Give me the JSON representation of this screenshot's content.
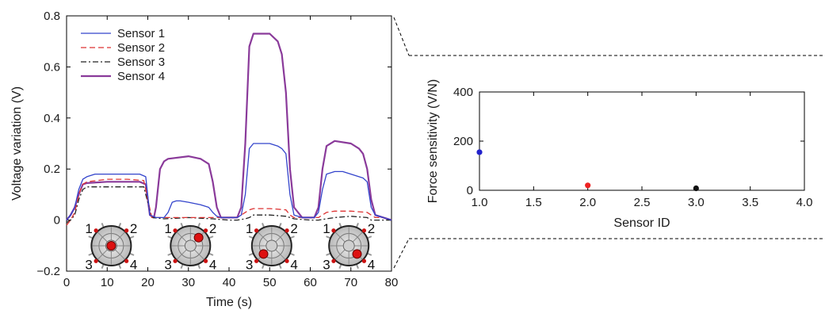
{
  "chart_data": [
    {
      "type": "line",
      "xlabel": "Time (s)",
      "ylabel": "Voltage variation (V)",
      "xlim": [
        0,
        80
      ],
      "ylim": [
        -0.2,
        0.8
      ],
      "xticks": [
        "0",
        "10",
        "20",
        "30",
        "40",
        "50",
        "60",
        "70",
        "80"
      ],
      "yticks": [
        "−0.2",
        "0",
        "0.2",
        "0.4",
        "0.6",
        "0.8"
      ],
      "legend_position": "top-left",
      "series": [
        {
          "name": "Sensor 1",
          "color": "#3344cc",
          "dash": "solid",
          "x": [
            0,
            1,
            2,
            3,
            4,
            5,
            7,
            10,
            14,
            18,
            19.5,
            20.5,
            22,
            24,
            25,
            26,
            27,
            28,
            30,
            33,
            35,
            36,
            37,
            38,
            40,
            42,
            43,
            44,
            45,
            46,
            48,
            50,
            52,
            53,
            54,
            55,
            56,
            58,
            60,
            61,
            62,
            63,
            64,
            66,
            68,
            70,
            72,
            73,
            74,
            75,
            76,
            78,
            80
          ],
          "y": [
            0,
            0.02,
            0.05,
            0.12,
            0.16,
            0.17,
            0.18,
            0.18,
            0.18,
            0.18,
            0.17,
            0.02,
            0.01,
            0.01,
            0.03,
            0.07,
            0.075,
            0.075,
            0.07,
            0.06,
            0.05,
            0.03,
            0.015,
            0.01,
            0.01,
            0.01,
            0.02,
            0.1,
            0.28,
            0.3,
            0.3,
            0.3,
            0.29,
            0.28,
            0.26,
            0.1,
            0.02,
            0.01,
            0.01,
            0.01,
            0.03,
            0.12,
            0.18,
            0.19,
            0.19,
            0.18,
            0.17,
            0.165,
            0.15,
            0.05,
            0.02,
            0.01,
            0
          ]
        },
        {
          "name": "Sensor 2",
          "color": "#dd3333",
          "dash": "dashed",
          "x": [
            0,
            1,
            2,
            3,
            4,
            5,
            10,
            15,
            19,
            20,
            21,
            24,
            30,
            36,
            38,
            40,
            42,
            43,
            44,
            45,
            46,
            50,
            54,
            55,
            56,
            58,
            60,
            62,
            63,
            64,
            66,
            70,
            74,
            75,
            76,
            78,
            80
          ],
          "y": [
            -0.02,
            0,
            0.03,
            0.1,
            0.14,
            0.15,
            0.16,
            0.16,
            0.155,
            0.08,
            0.01,
            0.01,
            0.01,
            0.01,
            0.01,
            0.01,
            0.01,
            0.02,
            0.03,
            0.04,
            0.045,
            0.045,
            0.04,
            0.02,
            0.01,
            0.01,
            0.01,
            0.01,
            0.02,
            0.03,
            0.035,
            0.035,
            0.03,
            0.02,
            0.01,
            0.01,
            0
          ]
        },
        {
          "name": "Sensor 3",
          "color": "#222222",
          "dash": "dashdot",
          "x": [
            0,
            1,
            2,
            3,
            4,
            5,
            10,
            15,
            19,
            20,
            21,
            24,
            30,
            36,
            40,
            42,
            44,
            45,
            46,
            50,
            54,
            55,
            56,
            60,
            62,
            64,
            66,
            70,
            74,
            75,
            76,
            80
          ],
          "y": [
            -0.01,
            0,
            0.02,
            0.08,
            0.12,
            0.13,
            0.13,
            0.13,
            0.13,
            0.07,
            0.01,
            0.005,
            0.01,
            0.005,
            0.0,
            0.0,
            0.005,
            0.01,
            0.02,
            0.02,
            0.015,
            0.01,
            0.005,
            0.0,
            0.0,
            0.005,
            0.01,
            0.015,
            0.01,
            0.0,
            0.0,
            0
          ]
        },
        {
          "name": "Sensor 4",
          "color": "#8a3a9a",
          "dash": "solid",
          "x": [
            0,
            1,
            2,
            3,
            4,
            5,
            10,
            15,
            18,
            19.5,
            20.5,
            21.5,
            22,
            23,
            24,
            25,
            30,
            33,
            35,
            36,
            37,
            38,
            40,
            42,
            43,
            44,
            45,
            46,
            50,
            52,
            53,
            54,
            55,
            56,
            58,
            60,
            61,
            62,
            63,
            64,
            66,
            70,
            72,
            73,
            74,
            75,
            76,
            78,
            80
          ],
          "y": [
            0,
            0.02,
            0.05,
            0.1,
            0.14,
            0.145,
            0.15,
            0.15,
            0.15,
            0.14,
            0.02,
            0.01,
            0.05,
            0.2,
            0.23,
            0.24,
            0.25,
            0.24,
            0.22,
            0.15,
            0.05,
            0.01,
            0.01,
            0.01,
            0.05,
            0.3,
            0.68,
            0.73,
            0.73,
            0.7,
            0.65,
            0.5,
            0.2,
            0.05,
            0.01,
            0.01,
            0.01,
            0.05,
            0.2,
            0.29,
            0.31,
            0.3,
            0.28,
            0.26,
            0.2,
            0.08,
            0.02,
            0.01,
            0
          ]
        }
      ],
      "sensor_labels": [
        "1",
        "2",
        "3",
        "4"
      ],
      "pressed_sensor_per_phase": [
        0,
        1,
        2,
        3
      ]
    },
    {
      "type": "scatter",
      "xlabel": "Sensor ID",
      "ylabel": "Force sensitivity (V/N)",
      "xlim": [
        1.0,
        4.0
      ],
      "ylim": [
        0,
        400
      ],
      "xticks": [
        "1.0",
        "1.5",
        "2.0",
        "2.5",
        "3.0",
        "3.5",
        "4.0"
      ],
      "yticks": [
        "0",
        "200",
        "400"
      ],
      "points": [
        {
          "x": 1.0,
          "y": 155,
          "color": "#2222cc"
        },
        {
          "x": 2.0,
          "y": 20,
          "color": "#ee2222"
        },
        {
          "x": 3.0,
          "y": 8,
          "color": "#111111"
        }
      ]
    }
  ]
}
